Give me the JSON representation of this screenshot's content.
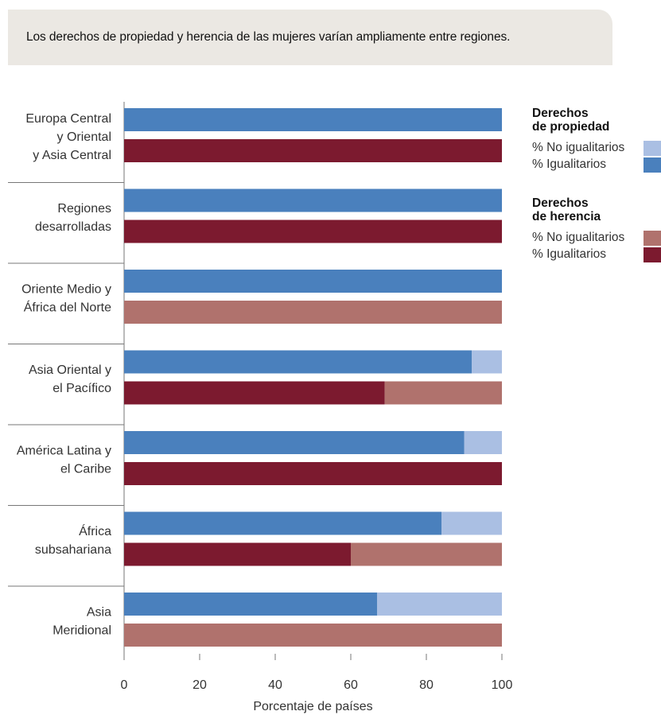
{
  "banner": {
    "text": "Los derechos de propiedad y herencia de las mujeres varían ampliamente entre regiones."
  },
  "colors": {
    "property_egalitarian": "#4a80bd",
    "property_non_egalitarian": "#aabfe3",
    "inheritance_egalitarian": "#7c1a2f",
    "inheritance_non_egalitarian": "#b0726d"
  },
  "legend": {
    "groups": [
      {
        "title_lines": [
          "Derechos",
          "de propiedad"
        ],
        "items": [
          {
            "label": "% No igualitarios",
            "color": "#aabfe3"
          },
          {
            "label": "% Igualitarios",
            "color": "#4a80bd"
          }
        ]
      },
      {
        "title_lines": [
          "Derechos",
          "de herencia"
        ],
        "items": [
          {
            "label": "% No igualitarios",
            "color": "#b0726d"
          },
          {
            "label": "% Igualitarios",
            "color": "#7c1a2f"
          }
        ]
      }
    ]
  },
  "chart_data": {
    "type": "bar",
    "orientation": "horizontal",
    "stacked": true,
    "xlabel": "Porcentaje de países",
    "xlim": [
      0,
      100
    ],
    "xticks": [
      0,
      20,
      40,
      60,
      80,
      100
    ],
    "grid": false,
    "legend_position": "right",
    "categories": [
      {
        "label_lines": [
          "Europa Central",
          "y Oriental",
          "y Asia Central"
        ],
        "property_egalitarian": 100,
        "property_non_egalitarian": 0,
        "inheritance_egalitarian": 100,
        "inheritance_non_egalitarian": 0
      },
      {
        "label_lines": [
          "Regiones",
          "desarrolladas"
        ],
        "property_egalitarian": 100,
        "property_non_egalitarian": 0,
        "inheritance_egalitarian": 100,
        "inheritance_non_egalitarian": 0
      },
      {
        "label_lines": [
          "Oriente Medio y",
          "África del Norte"
        ],
        "property_egalitarian": 100,
        "property_non_egalitarian": 0,
        "inheritance_egalitarian": 0,
        "inheritance_non_egalitarian": 100
      },
      {
        "label_lines": [
          "Asia Oriental y",
          "el Pacífico"
        ],
        "property_egalitarian": 92,
        "property_non_egalitarian": 8,
        "inheritance_egalitarian": 69,
        "inheritance_non_egalitarian": 31
      },
      {
        "label_lines": [
          "América Latina y",
          "el Caribe"
        ],
        "property_egalitarian": 90,
        "property_non_egalitarian": 10,
        "inheritance_egalitarian": 100,
        "inheritance_non_egalitarian": 0
      },
      {
        "label_lines": [
          "África",
          "subsahariana"
        ],
        "property_egalitarian": 84,
        "property_non_egalitarian": 16,
        "inheritance_egalitarian": 60,
        "inheritance_non_egalitarian": 40
      },
      {
        "label_lines": [
          "Asia",
          "Meridional"
        ],
        "property_egalitarian": 67,
        "property_non_egalitarian": 33,
        "inheritance_egalitarian": 0,
        "inheritance_non_egalitarian": 100
      }
    ]
  }
}
